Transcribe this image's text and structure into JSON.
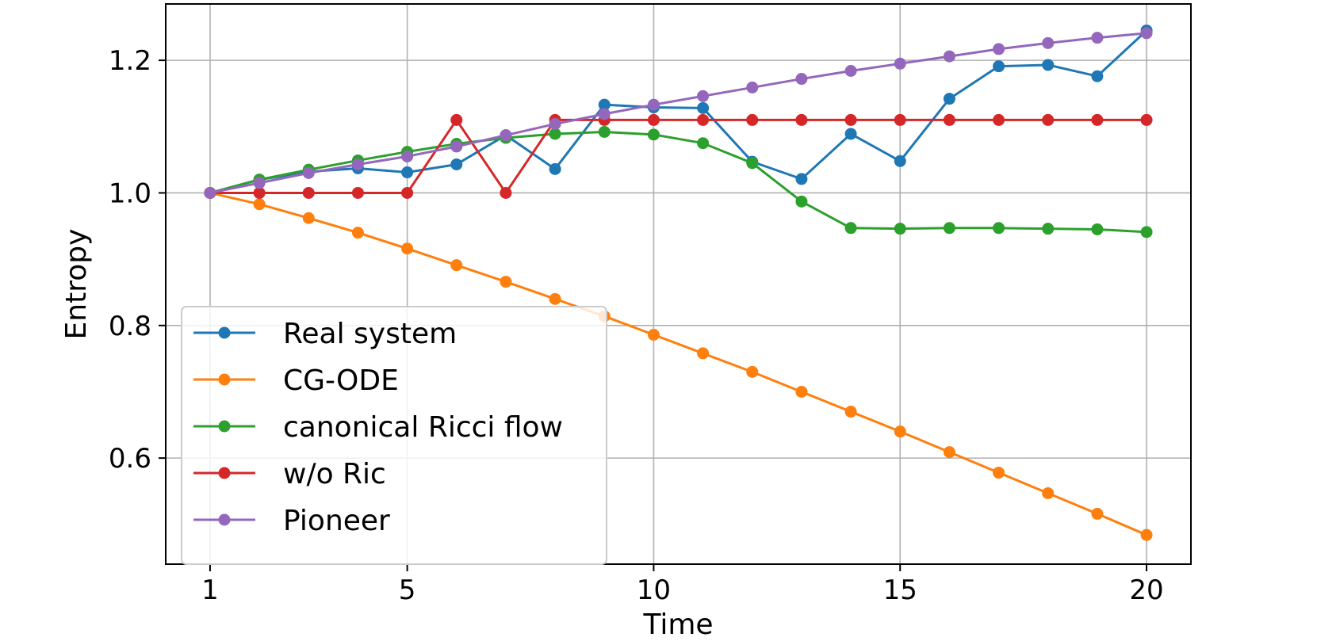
{
  "chart_data": {
    "type": "line",
    "title": "",
    "xlabel": "Time",
    "ylabel": "Entropy",
    "xlim": [
      0.1,
      20.9
    ],
    "ylim": [
      0.44,
      1.285
    ],
    "xticks": [
      1,
      5,
      10,
      15,
      20
    ],
    "xtick_labels": [
      "1",
      "5",
      "10",
      "15",
      "20"
    ],
    "yticks": [
      0.6,
      0.8,
      1.0,
      1.2
    ],
    "ytick_labels": [
      "0.6",
      "0.8",
      "1.0",
      "1.2"
    ],
    "grid": true,
    "legend_position": "lower-left",
    "x": [
      1,
      2,
      3,
      4,
      5,
      6,
      7,
      8,
      9,
      10,
      11,
      12,
      13,
      14,
      15,
      16,
      17,
      18,
      19,
      20
    ],
    "series": [
      {
        "name": "Real system",
        "color": "#1f77b4",
        "values": [
          1.0,
          1.02,
          1.032,
          1.037,
          1.031,
          1.043,
          1.087,
          1.036,
          1.133,
          1.129,
          1.128,
          1.047,
          1.021,
          1.089,
          1.048,
          1.142,
          1.191,
          1.193,
          1.176,
          1.245
        ]
      },
      {
        "name": "CG-ODE",
        "color": "#ff7f0e",
        "values": [
          1.0,
          0.983,
          0.962,
          0.94,
          0.916,
          0.891,
          0.866,
          0.84,
          0.814,
          0.786,
          0.758,
          0.73,
          0.7,
          0.67,
          0.64,
          0.609,
          0.578,
          0.547,
          0.516,
          0.484
        ]
      },
      {
        "name": "canonical Ricci flow",
        "color": "#2ca02c",
        "values": [
          1.0,
          1.02,
          1.035,
          1.049,
          1.062,
          1.074,
          1.083,
          1.089,
          1.092,
          1.088,
          1.075,
          1.045,
          0.987,
          0.947,
          0.946,
          0.947,
          0.947,
          0.946,
          0.945,
          0.941
        ]
      },
      {
        "name": "w/o Ric",
        "color": "#d62728",
        "values": [
          1.0,
          1.0,
          1.0,
          1.0,
          1.0,
          1.11,
          1.0,
          1.11,
          1.11,
          1.11,
          1.11,
          1.11,
          1.11,
          1.11,
          1.11,
          1.11,
          1.11,
          1.11,
          1.11,
          1.11
        ]
      },
      {
        "name": "Pioneer",
        "color": "#9467bd",
        "values": [
          1.0,
          1.015,
          1.03,
          1.043,
          1.055,
          1.07,
          1.087,
          1.104,
          1.119,
          1.133,
          1.146,
          1.159,
          1.172,
          1.184,
          1.195,
          1.206,
          1.217,
          1.226,
          1.234,
          1.241
        ]
      }
    ]
  }
}
